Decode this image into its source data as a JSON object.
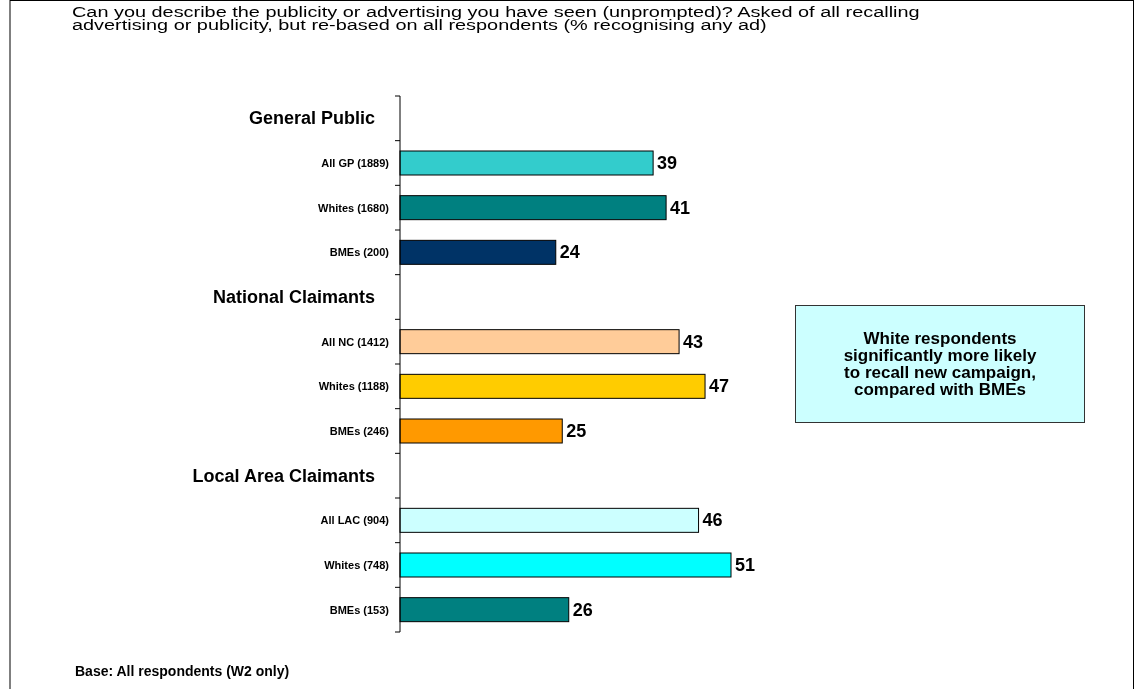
{
  "chart_data": {
    "type": "bar",
    "orientation": "horizontal",
    "title": "Can you describe the publicity or advertising you have seen (unprompted)?  Asked of all recalling advertising or publicity, but re-based on all respondents (% recognising any ad)",
    "categories": [
      null,
      "All GP (1889)",
      "Whites (1680)",
      "BMEs (200)",
      null,
      "All NC (1412)",
      "Whites (1188)",
      "BMEs (246)",
      null,
      "All LAC (904)",
      "Whites (748)",
      "BMEs (153)"
    ],
    "values": [
      null,
      39,
      41,
      24,
      null,
      43,
      47,
      25,
      null,
      46,
      51,
      26
    ],
    "colors": [
      null,
      "#33cccc",
      "#008080",
      "#003366",
      null,
      "#ffcc99",
      "#ffcc00",
      "#ff9900",
      null,
      "#ccffff",
      "#00ffff",
      "#008080"
    ],
    "data_labels": true,
    "annotations": [
      "White respondents significantly more likely to recall new campaign, compared with BMEs",
      "Base:  All respondents (W2 only)",
      "General Public",
      "National Claimants",
      "Local Area Claimants"
    ]
  }
}
